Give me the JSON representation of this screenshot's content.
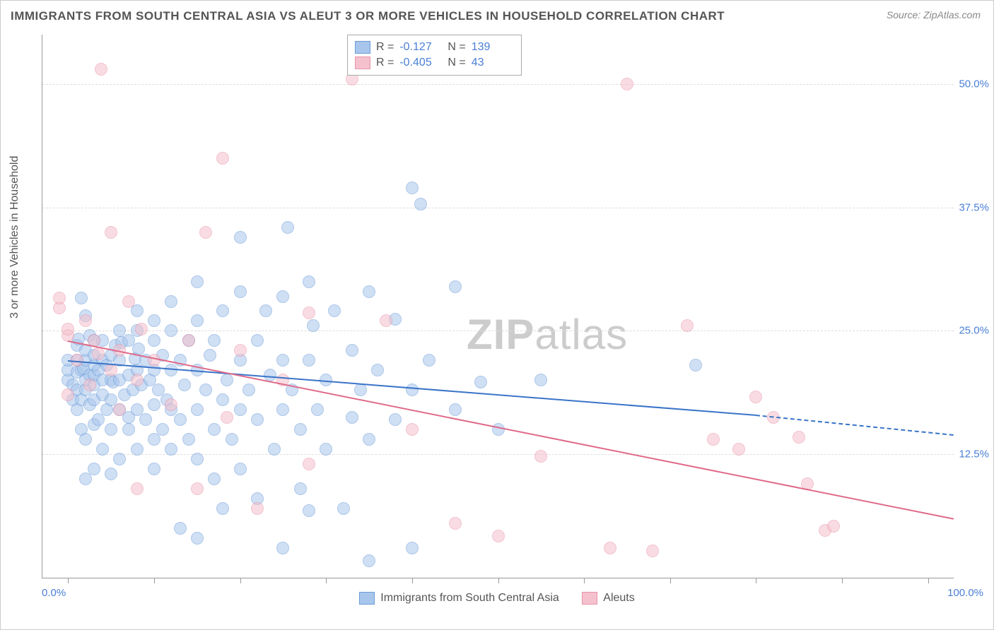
{
  "title": "IMMIGRANTS FROM SOUTH CENTRAL ASIA VS ALEUT 3 OR MORE VEHICLES IN HOUSEHOLD CORRELATION CHART",
  "source": "Source: ZipAtlas.com",
  "watermark_bold": "ZIP",
  "watermark_rest": "atlas",
  "yaxis_title": "3 or more Vehicles in Household",
  "xtick_min_label": "0.0%",
  "xtick_max_label": "100.0%",
  "chart": {
    "type": "scatter",
    "xlim": [
      -3,
      103
    ],
    "ylim": [
      0,
      55
    ],
    "yticks": [
      12.5,
      25.0,
      37.5,
      50.0
    ],
    "ytick_labels": [
      "12.5%",
      "25.0%",
      "37.5%",
      "50.0%"
    ],
    "xticks": [
      0,
      10,
      20,
      30,
      40,
      50,
      60,
      70,
      80,
      90,
      100
    ],
    "background_color": "#ffffff",
    "grid_color": "#dddddd",
    "point_radius": 9,
    "point_border_width": 1,
    "series": [
      {
        "name": "Immigrants from South Central Asia",
        "color_fill": "#a8c6ec",
        "color_border": "#6b9bd8",
        "fill_opacity": 0.55,
        "r_value": "-0.127",
        "n_value": "139",
        "trend": {
          "x1": 0,
          "y1": 22.0,
          "x2": 80,
          "y2": 16.5,
          "dash_to": 103,
          "dash_y": 14.5,
          "color": "#3a74c8",
          "width": 2
        },
        "points": [
          [
            0,
            20
          ],
          [
            0,
            21
          ],
          [
            0,
            22
          ],
          [
            0.5,
            18
          ],
          [
            0.5,
            19.5
          ],
          [
            1,
            17
          ],
          [
            1,
            19
          ],
          [
            1,
            20.8
          ],
          [
            1,
            22
          ],
          [
            1,
            23.5
          ],
          [
            1.2,
            24.2
          ],
          [
            1.5,
            15
          ],
          [
            1.5,
            18
          ],
          [
            1.5,
            21
          ],
          [
            1.5,
            28.3
          ],
          [
            1.8,
            21.2
          ],
          [
            2,
            10
          ],
          [
            2,
            14
          ],
          [
            2,
            19
          ],
          [
            2,
            20
          ],
          [
            2,
            22
          ],
          [
            2,
            23
          ],
          [
            2,
            26.5
          ],
          [
            2.5,
            17.5
          ],
          [
            2.5,
            20.5
          ],
          [
            2.5,
            24.5
          ],
          [
            3,
            11
          ],
          [
            3,
            15.5
          ],
          [
            3,
            18
          ],
          [
            3,
            19.5
          ],
          [
            3,
            20.5
          ],
          [
            3,
            21.5
          ],
          [
            3,
            22.5
          ],
          [
            3,
            24
          ],
          [
            3.5,
            16
          ],
          [
            3.5,
            21
          ],
          [
            4,
            13
          ],
          [
            4,
            18.5
          ],
          [
            4,
            20
          ],
          [
            4,
            22
          ],
          [
            4,
            24
          ],
          [
            4.5,
            17
          ],
          [
            4.5,
            21.5
          ],
          [
            5,
            10.5
          ],
          [
            5,
            15
          ],
          [
            5,
            18
          ],
          [
            5,
            20
          ],
          [
            5,
            22.5
          ],
          [
            5.2,
            19.8
          ],
          [
            5.5,
            23.5
          ],
          [
            6,
            12
          ],
          [
            6,
            17
          ],
          [
            6,
            20
          ],
          [
            6,
            22
          ],
          [
            6,
            25
          ],
          [
            6.2,
            23.8
          ],
          [
            6.5,
            18.5
          ],
          [
            7,
            15
          ],
          [
            7,
            16.2
          ],
          [
            7,
            20.5
          ],
          [
            7,
            24
          ],
          [
            7.5,
            19
          ],
          [
            7.8,
            22.2
          ],
          [
            8,
            13
          ],
          [
            8,
            17
          ],
          [
            8,
            21
          ],
          [
            8,
            25
          ],
          [
            8,
            27
          ],
          [
            8.2,
            23.2
          ],
          [
            8.5,
            19.5
          ],
          [
            9,
            16
          ],
          [
            9,
            22
          ],
          [
            9.5,
            20
          ],
          [
            10,
            11
          ],
          [
            10,
            14
          ],
          [
            10,
            17.5
          ],
          [
            10,
            21
          ],
          [
            10,
            24
          ],
          [
            10,
            26
          ],
          [
            10.5,
            19
          ],
          [
            11,
            15
          ],
          [
            11,
            22.5
          ],
          [
            11.5,
            18
          ],
          [
            12,
            13
          ],
          [
            12,
            17
          ],
          [
            12,
            21
          ],
          [
            12,
            25
          ],
          [
            12,
            28
          ],
          [
            13,
            5
          ],
          [
            13,
            16
          ],
          [
            13,
            22
          ],
          [
            13.5,
            19.5
          ],
          [
            14,
            14
          ],
          [
            14,
            24
          ],
          [
            15,
            4
          ],
          [
            15,
            12
          ],
          [
            15,
            17
          ],
          [
            15,
            21
          ],
          [
            15,
            26
          ],
          [
            15,
            30
          ],
          [
            16,
            19
          ],
          [
            16.5,
            22.5
          ],
          [
            17,
            10
          ],
          [
            17,
            15
          ],
          [
            17,
            24
          ],
          [
            18,
            7
          ],
          [
            18,
            18
          ],
          [
            18,
            27
          ],
          [
            18.5,
            20
          ],
          [
            19,
            14
          ],
          [
            20,
            11
          ],
          [
            20,
            17
          ],
          [
            20,
            22
          ],
          [
            20,
            29
          ],
          [
            20,
            34.5
          ],
          [
            21,
            19
          ],
          [
            22,
            8
          ],
          [
            22,
            16
          ],
          [
            22,
            24
          ],
          [
            23,
            27
          ],
          [
            23.5,
            20.5
          ],
          [
            24,
            13
          ],
          [
            25,
            3
          ],
          [
            25,
            17
          ],
          [
            25,
            22
          ],
          [
            25,
            28.5
          ],
          [
            25.5,
            35.5
          ],
          [
            26,
            19
          ],
          [
            27,
            9
          ],
          [
            27,
            15
          ],
          [
            28,
            6.8
          ],
          [
            28,
            22
          ],
          [
            28,
            30
          ],
          [
            28.5,
            25.5
          ],
          [
            29,
            17
          ],
          [
            30,
            13
          ],
          [
            30,
            20
          ],
          [
            31,
            27
          ],
          [
            32,
            7
          ],
          [
            33,
            16.2
          ],
          [
            33,
            23
          ],
          [
            34,
            19
          ],
          [
            35,
            1.7
          ],
          [
            35,
            14
          ],
          [
            35,
            29
          ],
          [
            36,
            21
          ],
          [
            38,
            16
          ],
          [
            38,
            26.2
          ],
          [
            40,
            3
          ],
          [
            40,
            19
          ],
          [
            40,
            39.5
          ],
          [
            41,
            37.8
          ],
          [
            42,
            22
          ],
          [
            45,
            17
          ],
          [
            45,
            29.5
          ],
          [
            48,
            19.8
          ],
          [
            50,
            15
          ],
          [
            55,
            20
          ],
          [
            73,
            21.5
          ]
        ]
      },
      {
        "name": "Aleuts",
        "color_fill": "#f5c1cd",
        "color_border": "#e893a8",
        "fill_opacity": 0.55,
        "r_value": "-0.405",
        "n_value": "43",
        "trend": {
          "x1": 0,
          "y1": 24.0,
          "x2": 103,
          "y2": 6.0,
          "dash_to": 103,
          "dash_y": 6.0,
          "color": "#e06a8a",
          "width": 2
        },
        "points": [
          [
            -1,
            27.3
          ],
          [
            -1,
            28.3
          ],
          [
            0,
            24.5
          ],
          [
            0,
            25.2
          ],
          [
            0,
            18.5
          ],
          [
            1,
            22
          ],
          [
            2,
            26
          ],
          [
            2.5,
            19.5
          ],
          [
            3,
            24
          ],
          [
            3.5,
            22.7
          ],
          [
            3.8,
            51.5
          ],
          [
            5,
            21
          ],
          [
            5,
            35
          ],
          [
            6,
            17
          ],
          [
            6,
            23
          ],
          [
            7,
            28
          ],
          [
            8,
            9
          ],
          [
            8,
            20
          ],
          [
            8.5,
            25.2
          ],
          [
            10,
            22
          ],
          [
            12,
            17.5
          ],
          [
            14,
            24
          ],
          [
            15,
            9
          ],
          [
            16,
            35
          ],
          [
            18,
            42.5
          ],
          [
            18.5,
            16.2
          ],
          [
            20,
            23
          ],
          [
            22,
            7
          ],
          [
            25,
            20
          ],
          [
            28,
            11.5
          ],
          [
            28,
            26.8
          ],
          [
            33,
            50.5
          ],
          [
            37,
            26
          ],
          [
            40,
            15
          ],
          [
            45,
            5.5
          ],
          [
            50,
            4.2
          ],
          [
            55,
            12.3
          ],
          [
            63,
            3
          ],
          [
            65,
            50
          ],
          [
            68,
            2.7
          ],
          [
            72,
            25.5
          ],
          [
            75,
            14
          ],
          [
            78,
            13
          ],
          [
            80,
            18.3
          ],
          [
            82,
            16.2
          ],
          [
            85,
            14.2
          ],
          [
            86,
            9.5
          ],
          [
            88,
            4.8
          ],
          [
            89,
            5.2
          ]
        ]
      }
    ]
  },
  "legend_bottom": [
    {
      "label": "Immigrants from South Central Asia",
      "fill": "#a8c6ec",
      "border": "#6b9bd8"
    },
    {
      "label": "Aleuts",
      "fill": "#f5c1cd",
      "border": "#e893a8"
    }
  ]
}
